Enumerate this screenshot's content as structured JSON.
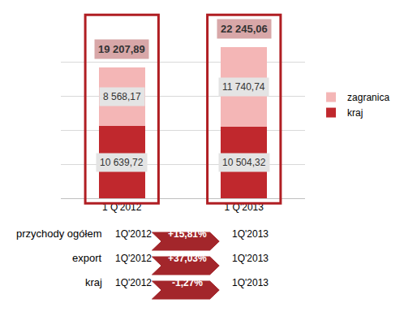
{
  "chart_data": {
    "type": "bar",
    "stacked": true,
    "categories": [
      "1 Q'2012",
      "1 Q'2013"
    ],
    "series": [
      {
        "name": "kraj",
        "color": "#c0282d",
        "values": [
          10639.72,
          10504.32
        ],
        "value_labels": [
          "10 639,72",
          "10 504,32"
        ]
      },
      {
        "name": "zagranica",
        "color": "#f4b6b6",
        "values": [
          8568.17,
          11740.74
        ],
        "value_labels": [
          "8 568,17",
          "11 740,74"
        ]
      }
    ],
    "totals": [
      19207.89,
      22245.06
    ],
    "total_labels": [
      "19 207,89",
      "22 245,06"
    ],
    "ylim": [
      0,
      25000
    ],
    "yticks": [
      0,
      5000,
      10000,
      15000,
      20000,
      25000
    ],
    "grid": true,
    "tick_labels": "x",
    "data_labels": true,
    "legend": "right",
    "comparisons": [
      {
        "label": "przychody ogółem",
        "from": "1Q'2012",
        "change": "+15,81%",
        "to": "1Q'2013"
      },
      {
        "label": "export",
        "from": "1Q'2012",
        "change": "+37,03%",
        "to": "1Q'2013"
      },
      {
        "label": "kraj",
        "from": "1Q'2012",
        "change": "-1,27%",
        "to": "1Q'2013"
      }
    ]
  }
}
